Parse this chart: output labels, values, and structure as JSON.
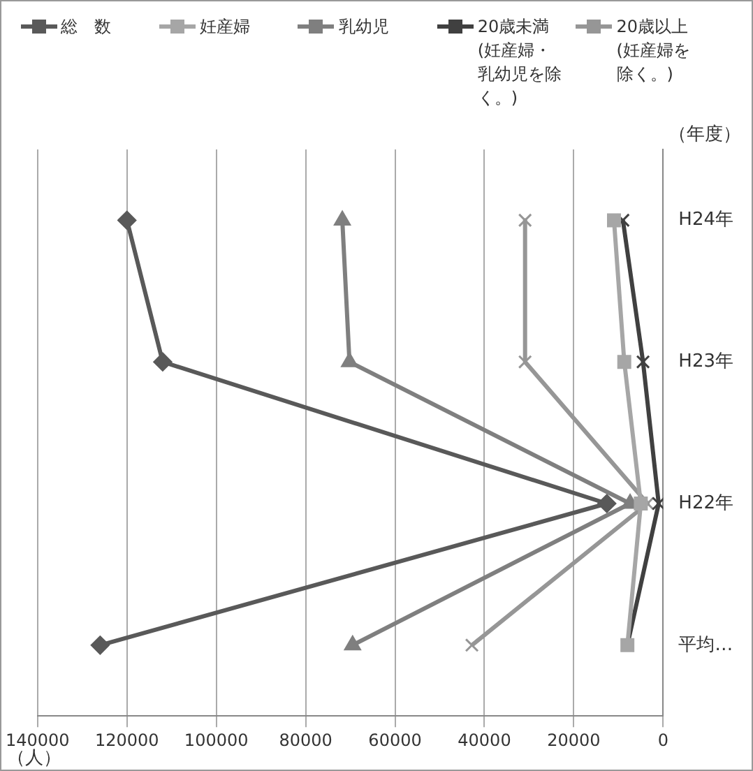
{
  "chart_data": {
    "type": "line",
    "orientation": "horizontal",
    "xlabel": "（人）",
    "ylabel": "（年度）",
    "categories": [
      "H24年",
      "H23年",
      "H22年",
      "平均…"
    ],
    "xlim": [
      140000,
      0
    ],
    "xticks": [
      140000,
      120000,
      100000,
      80000,
      60000,
      40000,
      20000,
      0
    ],
    "grid": "x",
    "legend": "top",
    "series": [
      {
        "name": "総　数",
        "color": "#595959",
        "marker": "diamond",
        "values": [
          120000,
          112000,
          12600,
          126000
        ]
      },
      {
        "name": "妊産婦",
        "color": "#a6a6a6",
        "marker": "square",
        "values": [
          11000,
          8700,
          5000,
          8000
        ]
      },
      {
        "name": "乳幼児",
        "color": "#7f7f7f",
        "marker": "triangle",
        "values": [
          71800,
          70200,
          7400,
          69500
        ]
      },
      {
        "name": "20歳未満(妊産婦・乳幼児を除く。)",
        "color": "#404040",
        "marker": "cross",
        "values": [
          9000,
          4500,
          1000,
          8000
        ]
      },
      {
        "name": "20歳以上(妊産婦を除く。)",
        "color": "#969696",
        "marker": "cross",
        "values": [
          30900,
          30900,
          3500,
          42800
        ]
      }
    ]
  }
}
